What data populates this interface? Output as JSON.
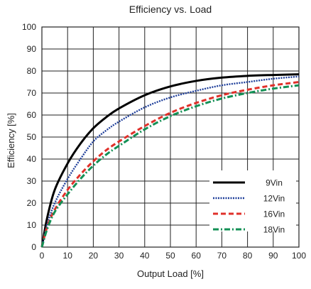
{
  "chart_data": {
    "type": "line",
    "title": "Efficiency vs. Load",
    "xlabel": "Output Load [%]",
    "ylabel": "Efficiency [%]",
    "xlim": [
      0,
      100
    ],
    "ylim": [
      0,
      100
    ],
    "xticks": [
      0,
      10,
      20,
      30,
      40,
      50,
      60,
      70,
      80,
      90,
      100
    ],
    "yticks": [
      0,
      10,
      20,
      30,
      40,
      50,
      60,
      70,
      80,
      90,
      100
    ],
    "grid": true,
    "legend_position": "bottom-right",
    "x": [
      0,
      2,
      5,
      10,
      15,
      20,
      25,
      30,
      40,
      50,
      60,
      70,
      80,
      90,
      100
    ],
    "series": [
      {
        "name": "9Vin",
        "color": "#000000",
        "style": "solid",
        "values": [
          0,
          13,
          26,
          38,
          47,
          54,
          59,
          63,
          69,
          73,
          75.5,
          77,
          77.8,
          78.2,
          78.5
        ]
      },
      {
        "name": "12Vin",
        "color": "#1f3f9a",
        "style": "dotted",
        "values": [
          0,
          10,
          20,
          31,
          40,
          48,
          53,
          57,
          63.5,
          68,
          71,
          73.5,
          75,
          76.5,
          77.5
        ]
      },
      {
        "name": "16Vin",
        "color": "#e0302a",
        "style": "dashed",
        "values": [
          0,
          9,
          17,
          26,
          33,
          39,
          44,
          48,
          55,
          61,
          65.5,
          69,
          71.5,
          73.5,
          75
        ]
      },
      {
        "name": "18Vin",
        "color": "#139055",
        "style": "dashdot",
        "values": [
          0,
          8,
          16,
          24,
          31,
          37,
          42,
          46,
          53.5,
          59.5,
          64,
          67.5,
          70,
          72,
          73.5
        ]
      }
    ]
  }
}
